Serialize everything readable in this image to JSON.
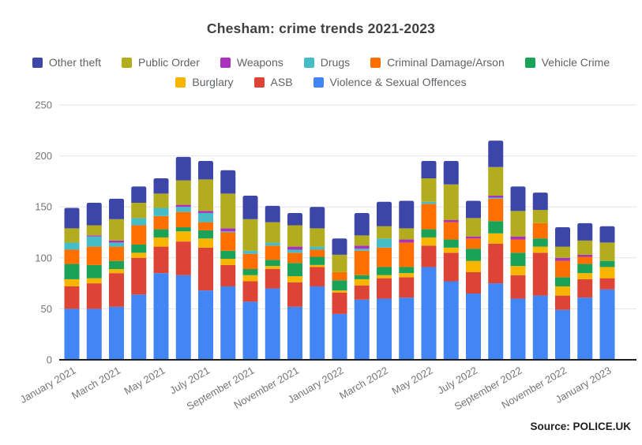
{
  "title": "Chesham: crime trends 2021-2023",
  "source_note": "Source: POLICE.UK",
  "legend": {
    "rows": [
      [
        "Other theft",
        "Public Order",
        "Weapons",
        "Drugs",
        "Criminal Damage/Arson",
        "Vehicle Crime"
      ],
      [
        "Burglary",
        "ASB",
        "Violence & Sexual Offences"
      ]
    ]
  },
  "chart_data": {
    "type": "bar",
    "stacked": true,
    "title": "Chesham: crime trends 2021-2023",
    "xlabel": "",
    "ylabel": "",
    "ylim": [
      0,
      250
    ],
    "yticks": [
      0,
      50,
      100,
      150,
      200,
      250
    ],
    "grid": true,
    "legend_position": "top",
    "x_labels_shown_every": 2,
    "categories": [
      "January 2021",
      "February 2021",
      "March 2021",
      "April 2021",
      "May 2021",
      "June 2021",
      "July 2021",
      "August 2021",
      "September 2021",
      "October 2021",
      "November 2021",
      "December 2021",
      "January 2022",
      "February 2022",
      "March 2022",
      "April 2022",
      "May 2022",
      "June 2022",
      "July 2022",
      "August 2022",
      "September 2022",
      "October 2022",
      "November 2022",
      "December 2022",
      "January 2023"
    ],
    "series": [
      {
        "name": "Violence & Sexual Offences",
        "color": "#4285F4",
        "values": [
          50,
          50,
          52,
          64,
          85,
          83,
          68,
          72,
          57,
          70,
          52,
          72,
          45,
          59,
          60,
          61,
          91,
          77,
          65,
          75,
          60,
          63,
          49,
          61,
          69
        ]
      },
      {
        "name": "ASB",
        "color": "#DE4436",
        "values": [
          22,
          25,
          33,
          36,
          26,
          33,
          42,
          21,
          20,
          19,
          24,
          19,
          21,
          14,
          20,
          20,
          21,
          28,
          21,
          39,
          23,
          42,
          14,
          18,
          11
        ]
      },
      {
        "name": "Burglary",
        "color": "#F7B500",
        "values": [
          7,
          5,
          4,
          5,
          9,
          10,
          9,
          6,
          6,
          3,
          6,
          2,
          2,
          6,
          3,
          4,
          8,
          5,
          11,
          10,
          9,
          6,
          9,
          6,
          11
        ]
      },
      {
        "name": "Vehicle Crime",
        "color": "#1AA258",
        "values": [
          15,
          13,
          8,
          8,
          8,
          4,
          8,
          8,
          6,
          6,
          13,
          8,
          10,
          4,
          8,
          6,
          8,
          8,
          12,
          12,
          13,
          8,
          9,
          9,
          6
        ]
      },
      {
        "name": "Criminal Damage/Arson",
        "color": "#FF6F00",
        "values": [
          14,
          18,
          14,
          19,
          13,
          15,
          8,
          18,
          15,
          14,
          10,
          7,
          8,
          24,
          19,
          24,
          25,
          17,
          10,
          22,
          13,
          15,
          16,
          7,
          0
        ]
      },
      {
        "name": "Drugs",
        "color": "#46BDC6",
        "values": [
          7,
          10,
          4,
          7,
          8,
          5,
          9,
          1,
          3,
          3,
          3,
          3,
          0,
          2,
          9,
          0,
          2,
          0,
          0,
          1,
          0,
          0,
          0,
          0,
          0
        ]
      },
      {
        "name": "Weapons",
        "color": "#A932BD",
        "values": [
          0,
          1,
          2,
          0,
          0,
          2,
          2,
          3,
          0,
          0,
          3,
          0,
          0,
          3,
          0,
          3,
          0,
          2,
          2,
          2,
          3,
          0,
          3,
          2,
          0
        ]
      },
      {
        "name": "Public Order",
        "color": "#B2AC1E",
        "values": [
          14,
          10,
          21,
          15,
          14,
          24,
          31,
          34,
          31,
          20,
          21,
          18,
          17,
          10,
          12,
          11,
          23,
          35,
          18,
          28,
          25,
          13,
          11,
          14,
          18
        ]
      },
      {
        "name": "Other theft",
        "color": "#3C45A8",
        "values": [
          20,
          22,
          20,
          16,
          15,
          23,
          18,
          23,
          23,
          16,
          12,
          21,
          16,
          22,
          24,
          27,
          17,
          23,
          17,
          26,
          24,
          17,
          19,
          17,
          16
        ]
      }
    ],
    "totals": [
      149,
      154,
      158,
      170,
      178,
      199,
      195,
      186,
      161,
      151,
      144,
      150,
      119,
      144,
      155,
      156,
      195,
      195,
      156,
      215,
      170,
      164,
      130,
      134,
      131
    ]
  },
  "layout_colors": {
    "gridline": "#e6e6e6",
    "baseline": "#1f1f1f",
    "axis_text": "#757575",
    "title_text": "#404040",
    "legend_text": "#5f6368"
  }
}
